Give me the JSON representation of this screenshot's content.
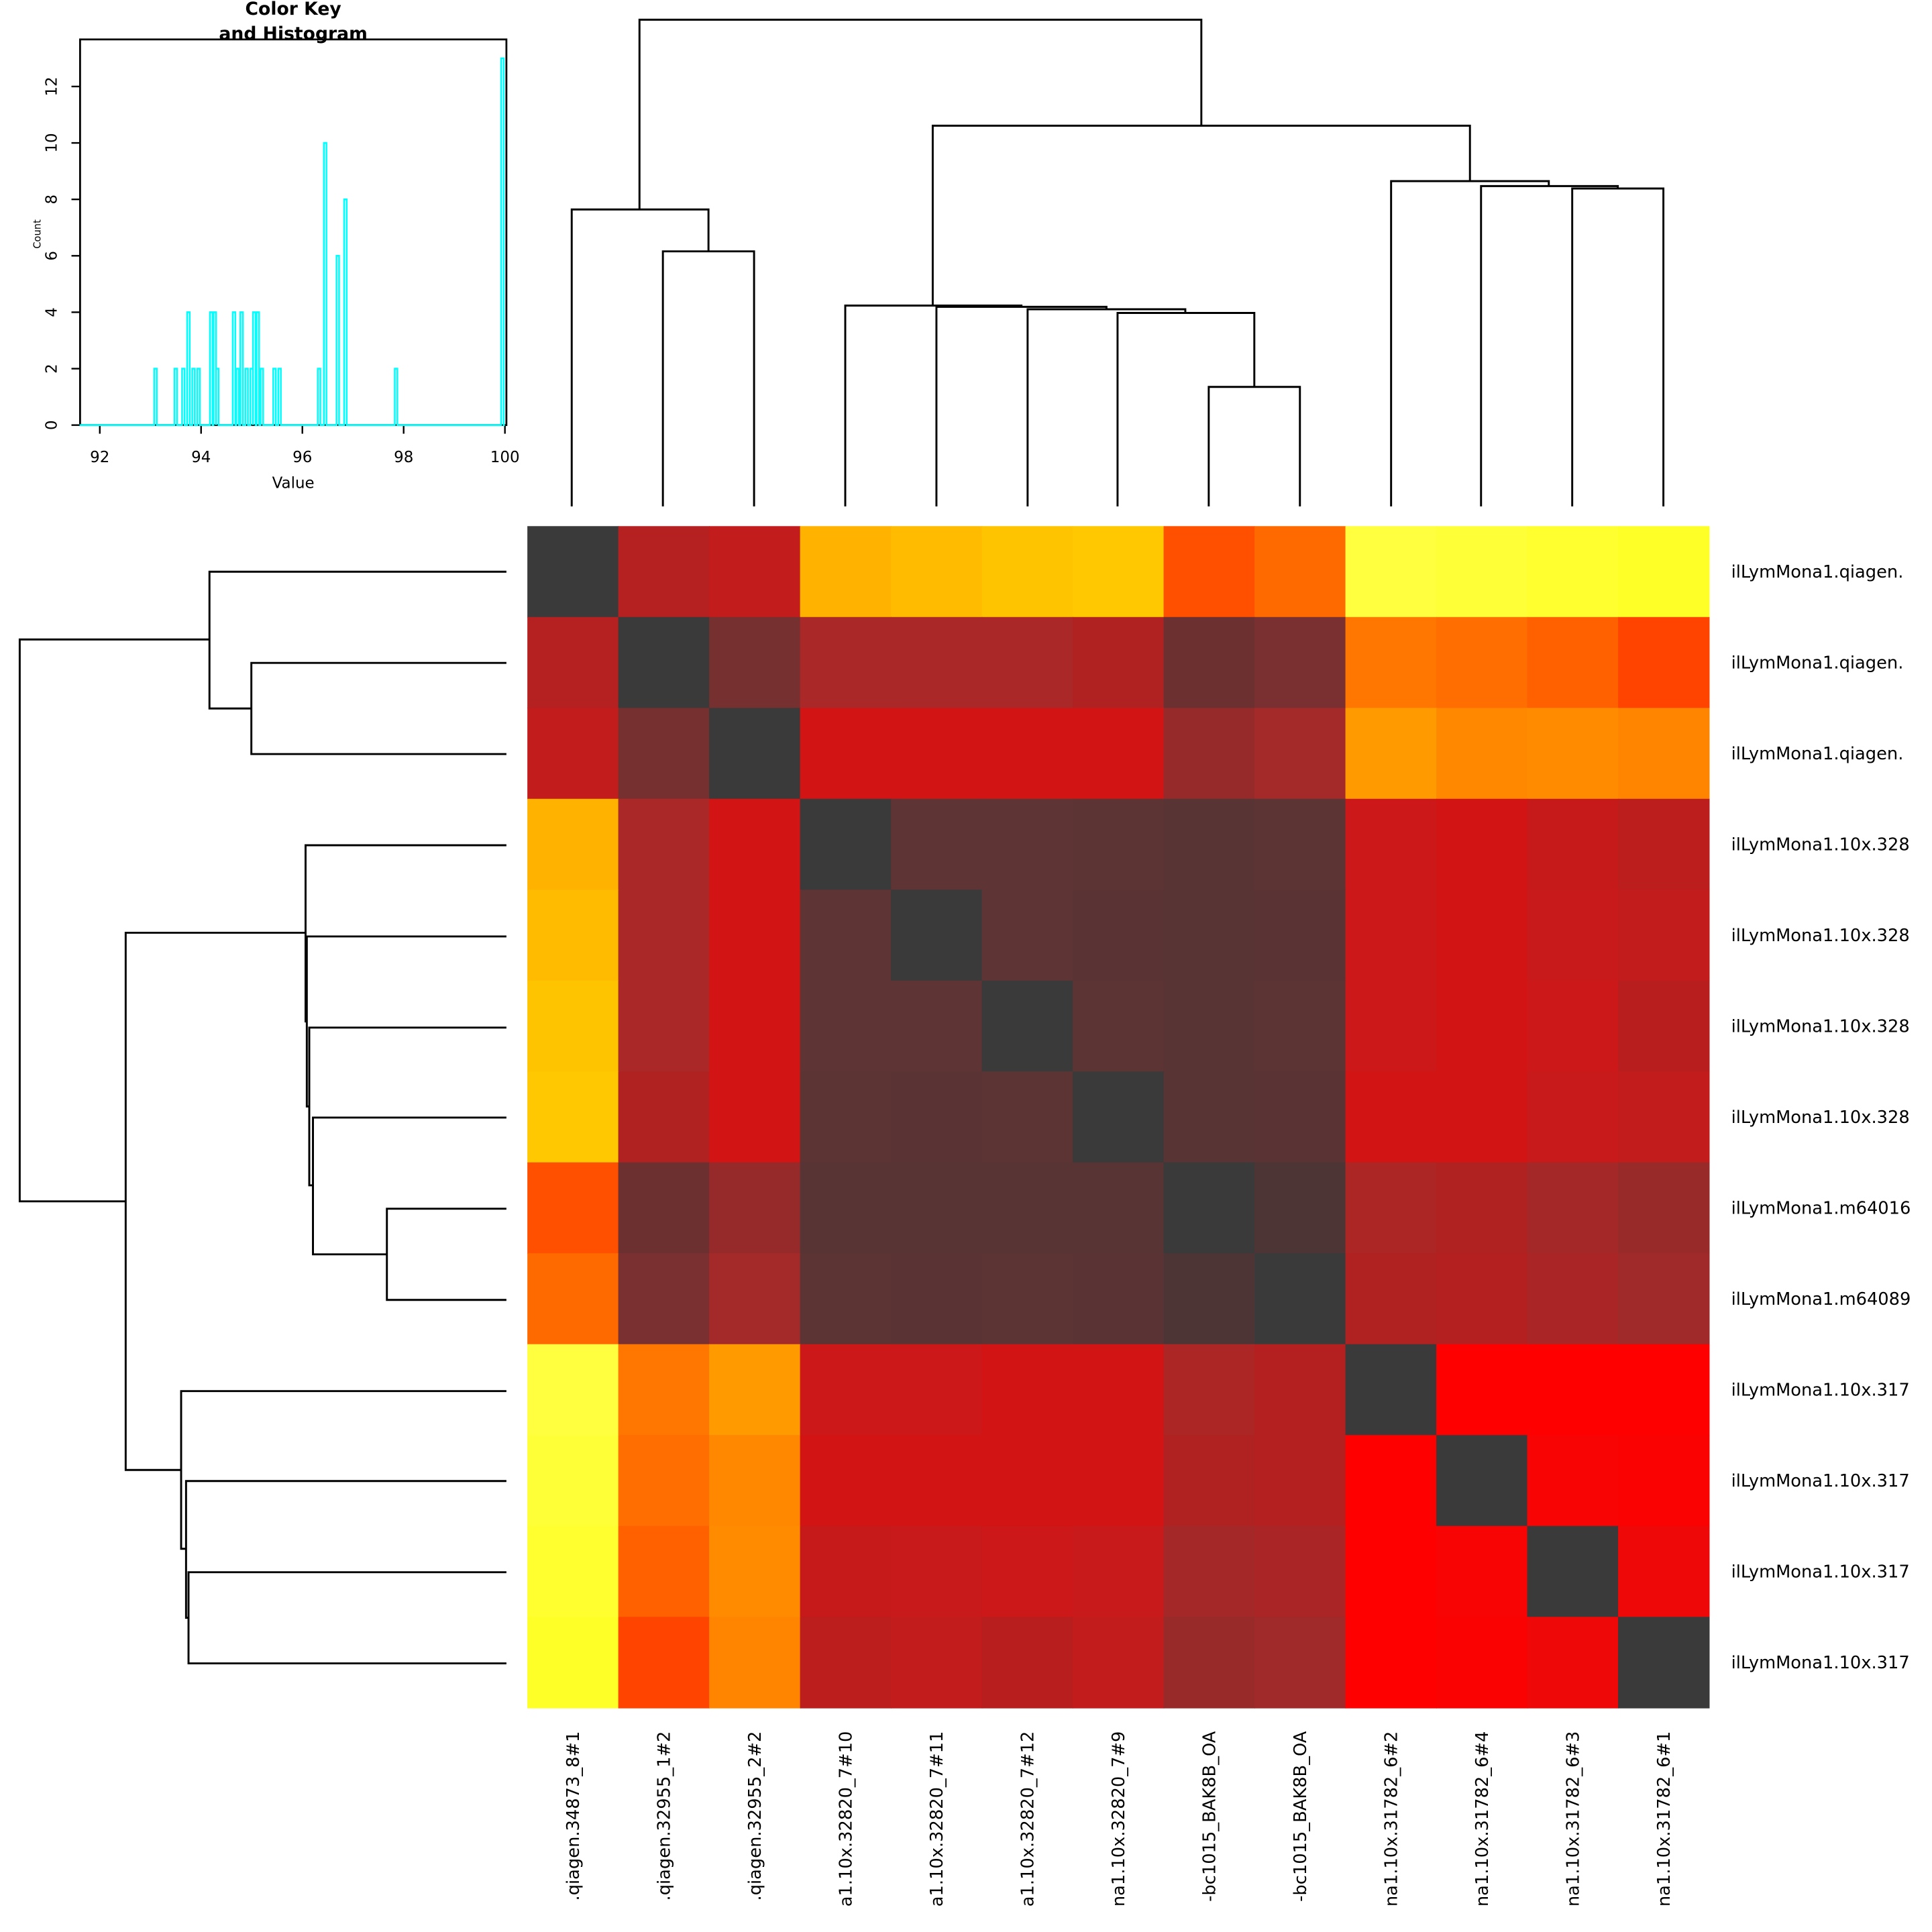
{
  "chart_data": [
    {
      "type": "heatmap",
      "title": "",
      "row_labels": [
        "ilLymMona1.qiagen.",
        "ilLymMona1.qiagen.",
        "ilLymMona1.qiagen.",
        "ilLymMona1.10x.328",
        "ilLymMona1.10x.328",
        "ilLymMona1.10x.328",
        "ilLymMona1.10x.328",
        "ilLymMona1.m64016",
        "ilLymMona1.m64089",
        "ilLymMona1.10x.317",
        "ilLymMona1.10x.317",
        "ilLymMona1.10x.317",
        "ilLymMona1.10x.317"
      ],
      "col_labels": [
        ".qiagen.34873_8#1",
        ".qiagen.32955_1#2",
        ".qiagen.32955_2#2",
        "a1.10x.32820_7#10",
        "a1.10x.32820_7#11",
        "a1.10x.32820_7#12",
        "na1.10x.32820_7#9",
        "-bc1015_BAK8B_OA",
        "-bc1015_BAK8B_OA",
        "na1.10x.31782_6#2",
        "na1.10x.31782_6#4",
        "na1.10x.31782_6#3",
        "na1.10x.31782_6#1"
      ],
      "values": [
        [
          100,
          95.2,
          95.0,
          93.5,
          93.5,
          93.4,
          93.4,
          94.2,
          94.0,
          93.1,
          93.1,
          93.1,
          93.1
        ],
        [
          95.2,
          100,
          95.8,
          95.2,
          95.2,
          95.2,
          95.2,
          96.0,
          95.8,
          93.8,
          94.0,
          94.1,
          94.2
        ],
        [
          95.0,
          95.8,
          100,
          94.8,
          94.8,
          94.8,
          94.8,
          95.5,
          95.3,
          93.7,
          93.8,
          93.8,
          93.8
        ],
        [
          93.5,
          95.2,
          94.8,
          100,
          96.4,
          96.4,
          96.7,
          96.9,
          96.7,
          94.8,
          94.8,
          95.0,
          95.0
        ],
        [
          93.5,
          95.2,
          94.8,
          96.4,
          100,
          96.4,
          96.8,
          96.9,
          96.8,
          94.8,
          94.8,
          95.0,
          95.0
        ],
        [
          93.4,
          95.2,
          94.8,
          96.4,
          96.4,
          100,
          96.7,
          96.9,
          96.7,
          94.8,
          94.8,
          94.8,
          95.0
        ],
        [
          93.4,
          95.2,
          94.8,
          96.7,
          96.8,
          96.7,
          100,
          96.9,
          96.8,
          94.8,
          94.8,
          95.0,
          95.0
        ],
        [
          94.2,
          96.0,
          95.5,
          96.9,
          96.9,
          96.9,
          96.9,
          100,
          97.8,
          95.2,
          95.2,
          95.3,
          95.5
        ],
        [
          94.0,
          95.8,
          95.3,
          96.7,
          96.8,
          96.7,
          96.8,
          97.8,
          100,
          95.2,
          95.2,
          95.2,
          95.3
        ],
        [
          93.1,
          93.8,
          93.7,
          94.8,
          94.8,
          94.8,
          94.8,
          95.2,
          95.2,
          100,
          94.5,
          94.5,
          94.5
        ],
        [
          93.1,
          94.0,
          93.8,
          94.8,
          94.8,
          94.8,
          94.8,
          95.2,
          95.2,
          94.5,
          100,
          94.5,
          94.5
        ],
        [
          93.1,
          94.1,
          93.8,
          95.0,
          95.0,
          94.8,
          95.0,
          95.3,
          95.2,
          94.5,
          94.5,
          100,
          94.6
        ],
        [
          93.1,
          94.2,
          93.8,
          95.0,
          95.0,
          95.0,
          95.0,
          95.5,
          95.3,
          94.5,
          94.5,
          94.6,
          100
        ]
      ],
      "cell_colors": [
        [
          "#3a3a3a",
          "#b52020",
          "#c21c1c",
          "#ffb300",
          "#ffbb00",
          "#ffc400",
          "#ffc800",
          "#ff5000",
          "#ff6a00",
          "#ffff40",
          "#ffff38",
          "#ffff30",
          "#ffff28"
        ],
        [
          "#b52020",
          "#3a3a3a",
          "#763030",
          "#ab2828",
          "#aa2828",
          "#aa2828",
          "#b02222",
          "#6c3030",
          "#7a3030",
          "#ff7700",
          "#ff6e00",
          "#ff6000",
          "#ff4400"
        ],
        [
          "#c21c1c",
          "#763030",
          "#3a3a3a",
          "#d21414",
          "#d21414",
          "#d21414",
          "#d21414",
          "#962a2a",
          "#a42a2a",
          "#ff9a00",
          "#ff8800",
          "#ff8c00",
          "#ff8400"
        ],
        [
          "#ffb300",
          "#ab2828",
          "#d21414",
          "#3a3a3a",
          "#5e3434",
          "#5e3434",
          "#5c3434",
          "#583434",
          "#5c3434",
          "#cc1818",
          "#d21414",
          "#c61a1a",
          "#bc1e1e"
        ],
        [
          "#ffbb00",
          "#aa2828",
          "#d21414",
          "#5e3434",
          "#3a3a3a",
          "#5e3434",
          "#5a3434",
          "#583434",
          "#5a3434",
          "#cc1818",
          "#d21414",
          "#c81a1a",
          "#c21c1c"
        ],
        [
          "#ffc400",
          "#aa2828",
          "#d21414",
          "#5e3434",
          "#5e3434",
          "#3a3a3a",
          "#5c3434",
          "#583434",
          "#5c3434",
          "#cc1818",
          "#d21414",
          "#cc1818",
          "#b81e1e"
        ],
        [
          "#ffc800",
          "#b02222",
          "#d21414",
          "#5c3434",
          "#5a3434",
          "#5c3434",
          "#3a3a3a",
          "#583434",
          "#5a3434",
          "#d21414",
          "#d21414",
          "#c81a1a",
          "#c21c1c"
        ],
        [
          "#ff5000",
          "#6c3030",
          "#962a2a",
          "#583434",
          "#583434",
          "#583434",
          "#583434",
          "#3a3a3a",
          "#4d3535",
          "#ac2626",
          "#b02222",
          "#a42828",
          "#982a2a"
        ],
        [
          "#ff6a00",
          "#7a3030",
          "#a42a2a",
          "#5c3434",
          "#5a3434",
          "#5c3434",
          "#5a3434",
          "#4d3535",
          "#3a3a3a",
          "#b02222",
          "#b42020",
          "#aa2626",
          "#a02a2a"
        ],
        [
          "#ffff40",
          "#ff7700",
          "#ff9a00",
          "#cc1818",
          "#cc1818",
          "#d21414",
          "#d21414",
          "#ac2626",
          "#b42020",
          "#3a3a3a",
          "#ff0000",
          "#ff0000",
          "#ff0000"
        ],
        [
          "#ffff38",
          "#ff6e00",
          "#ff8800",
          "#d21414",
          "#d21414",
          "#d21414",
          "#d21414",
          "#b02222",
          "#b42020",
          "#ff0000",
          "#3a3a3a",
          "#f80404",
          "#fa0202"
        ],
        [
          "#ffff30",
          "#ff6000",
          "#ff8c00",
          "#c61a1a",
          "#c81a1a",
          "#cc1818",
          "#c81a1a",
          "#a42828",
          "#aa2626",
          "#ff0000",
          "#f80404",
          "#3a3a3a",
          "#ee0808"
        ],
        [
          "#ffff28",
          "#ff4400",
          "#ff8400",
          "#bc1e1e",
          "#c21c1c",
          "#b81e1e",
          "#c21c1c",
          "#982a2a",
          "#a02a2a",
          "#ff0000",
          "#fa0202",
          "#ee0808",
          "#3a3a3a"
        ]
      ]
    },
    {
      "type": "histogram",
      "title_line1": "Color Key",
      "title_line2": "and Histogram",
      "xlabel": "Value",
      "ylabel": "Count",
      "xlim": [
        91.6,
        100
      ],
      "ylim": [
        0,
        13.6
      ],
      "xticks": [
        "92",
        "94",
        "96",
        "98",
        "100"
      ],
      "yticks": [
        "0",
        "2",
        "4",
        "6",
        "8",
        "10",
        "12"
      ],
      "line_color": "#00ffff",
      "bins": [
        [
          93.1,
          2
        ],
        [
          93.5,
          2
        ],
        [
          93.65,
          2
        ],
        [
          93.75,
          4
        ],
        [
          93.85,
          2
        ],
        [
          93.95,
          2
        ],
        [
          94.2,
          4
        ],
        [
          94.27,
          4
        ],
        [
          94.32,
          2
        ],
        [
          94.65,
          4
        ],
        [
          94.72,
          2
        ],
        [
          94.8,
          4
        ],
        [
          94.9,
          2
        ],
        [
          95.0,
          2
        ],
        [
          95.05,
          4
        ],
        [
          95.12,
          4
        ],
        [
          95.2,
          2
        ],
        [
          95.45,
          2
        ],
        [
          95.55,
          2
        ],
        [
          96.33,
          2
        ],
        [
          96.45,
          10
        ],
        [
          96.7,
          6
        ],
        [
          96.85,
          8
        ],
        [
          97.85,
          2
        ],
        [
          99.95,
          13
        ]
      ]
    }
  ]
}
